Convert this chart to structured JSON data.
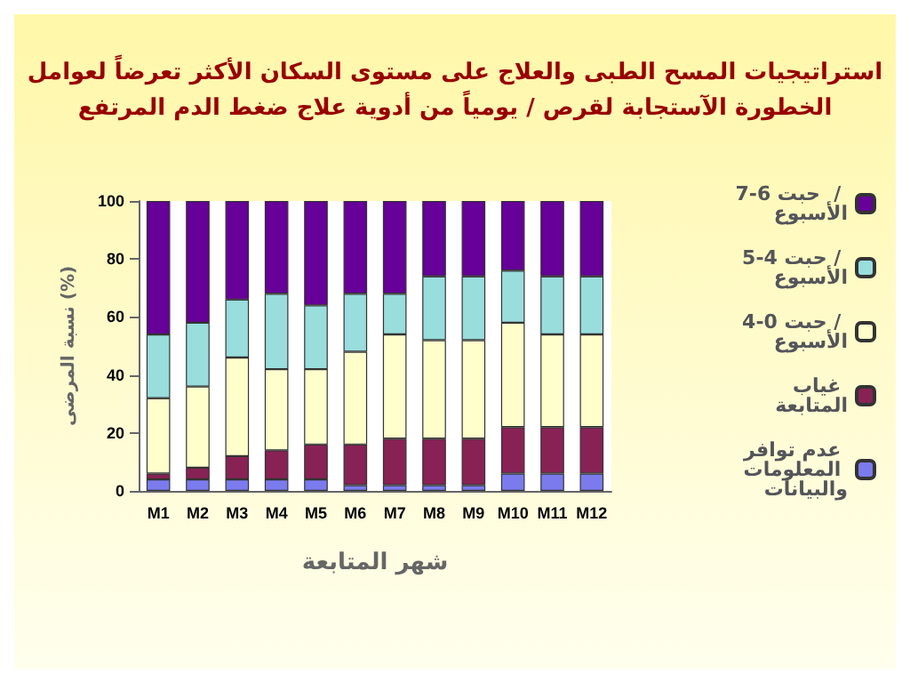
{
  "chart_data": {
    "type": "bar",
    "stacked": true,
    "title": "استراتيجيات المسح الطبى والعلاج على مستوى السكان الأكثر تعرضاً لعوامل\nالخطورة الآستجابة لقرص / يومياً من أدوية علاج ضغط الدم المرتفع",
    "xlabel": "شهر المتابعة",
    "ylabel": "نسبة المرضى (%)",
    "categories": [
      "M1",
      "M2",
      "M3",
      "M4",
      "M5",
      "M6",
      "M7",
      "M8",
      "M9",
      "M10",
      "M11",
      "M12"
    ],
    "series": [
      {
        "name": "عدم توافر المعلومات والبيانات",
        "color": "#7b7bee",
        "values": [
          4,
          4,
          4,
          4,
          4,
          2,
          2,
          2,
          2,
          6,
          6,
          6
        ]
      },
      {
        "name": "غياب المتابعة",
        "color": "#882255",
        "values": [
          2,
          4,
          8,
          10,
          12,
          14,
          16,
          16,
          16,
          16,
          16,
          16
        ]
      },
      {
        "name": "4-0 حبت / الأسبوع",
        "color": "#ffffcc",
        "values": [
          26,
          28,
          34,
          28,
          26,
          32,
          36,
          34,
          34,
          36,
          32,
          32
        ]
      },
      {
        "name": "5-4 حبت / الأسبوع",
        "color": "#99dddd",
        "values": [
          22,
          22,
          20,
          26,
          22,
          20,
          14,
          22,
          22,
          18,
          20,
          20
        ]
      },
      {
        "name": "7-6 حبت  / الأسبوع",
        "color": "#660099",
        "values": [
          46,
          42,
          34,
          32,
          36,
          32,
          32,
          26,
          26,
          24,
          26,
          26
        ]
      }
    ],
    "ylim": [
      0,
      100
    ],
    "yticks": [
      0,
      20,
      40,
      60,
      80,
      100
    ],
    "grid": false,
    "legend": "right"
  }
}
